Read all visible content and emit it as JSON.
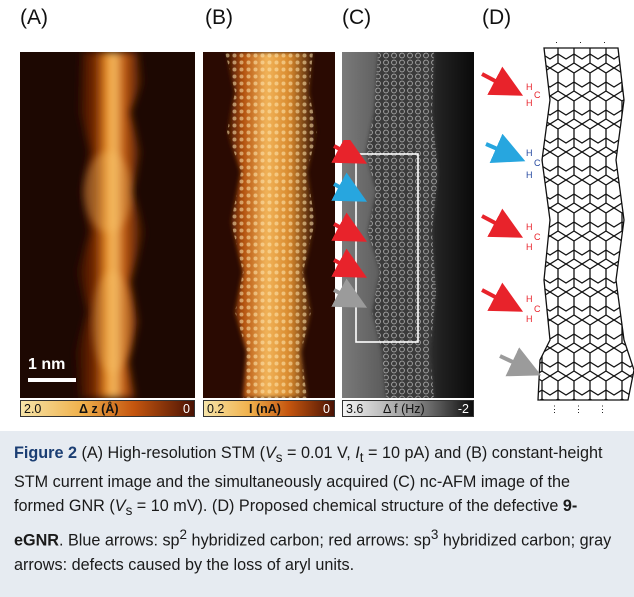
{
  "figure": {
    "panels": {
      "a": {
        "label": "(A)",
        "scale_text": "1 nm",
        "cbar_min": "2.0",
        "cbar_quantity": "Δ z (Å)",
        "cbar_max": "0"
      },
      "b": {
        "label": "(B)",
        "cbar_min": "0.2",
        "cbar_quantity": "I (nA)",
        "cbar_max": "0"
      },
      "c": {
        "label": "(C)",
        "cbar_min": "3.6",
        "cbar_quantity": "Δ f (Hz)",
        "cbar_max": "-2"
      },
      "d": {
        "label": "(D)"
      }
    },
    "arrows": {
      "colors": {
        "red": "#e8232b",
        "blue": "#27a6df",
        "gray": "#9b9b9b"
      },
      "h_label": "H",
      "c_label": "C"
    }
  },
  "caption": {
    "figure_label": "Figure 2",
    "p1": " (A) High-resolution STM (",
    "vs_sym": "V",
    "vs_sub": "s",
    "vs_val": " = 0.01 V, ",
    "it_sym": "I",
    "it_sub": "t",
    "it_val": " = 10 pA) and (B) constant-height STM current image and the simultaneously acquired (C) nc-AFM image of the formed GNR (",
    "vs2_sym": "V",
    "vs2_sub": "s",
    "vs2_val": " = 10 mV). (D) Proposed chemical structure of the defective ",
    "compound": "9-eGNR",
    "p2": ". Blue arrows: sp",
    "sup2": "2",
    "p3": " hybridized carbon; red arrows: sp",
    "sup3": "3",
    "p4": " hybridized carbon; gray arrows: defects caused by the loss of aryl units."
  }
}
